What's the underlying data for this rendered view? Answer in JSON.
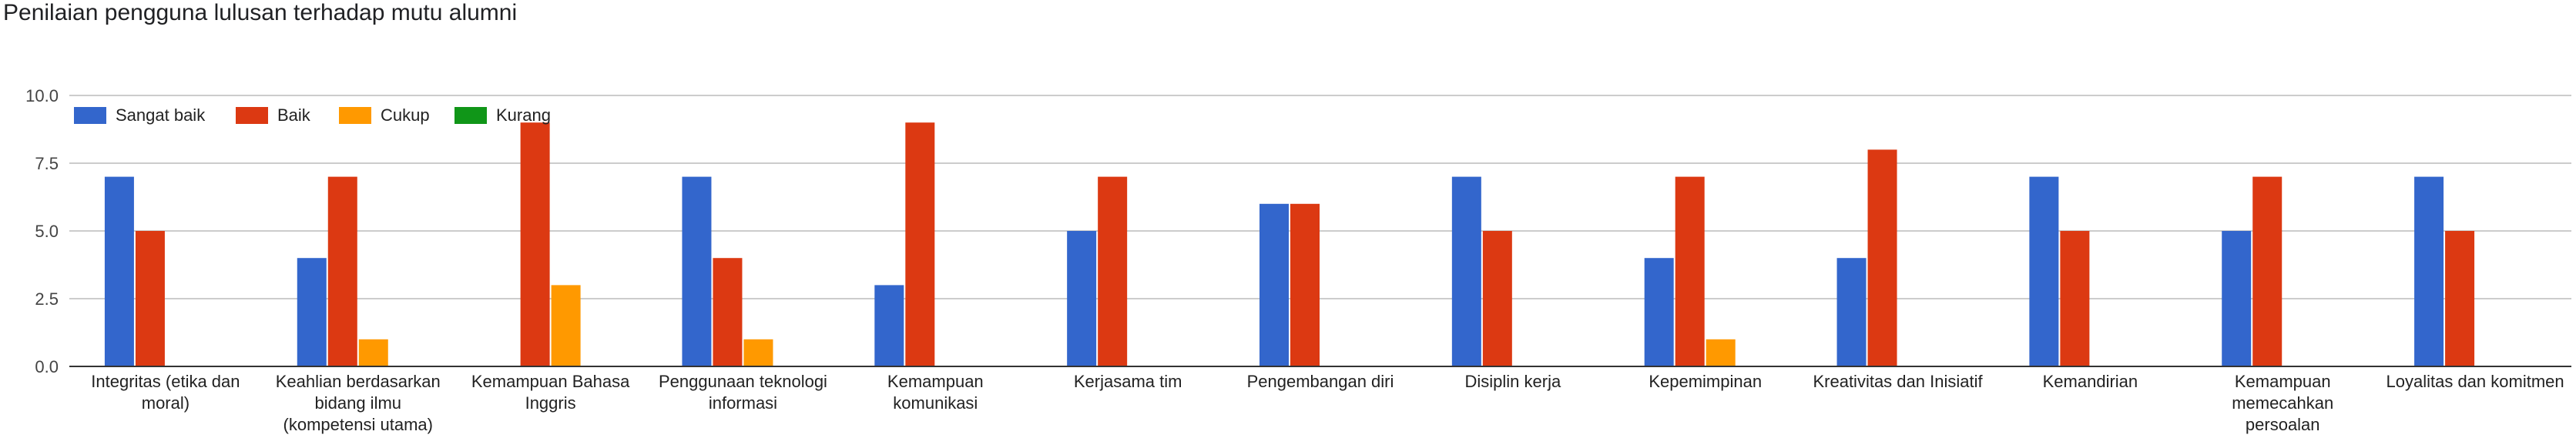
{
  "chart_data": {
    "type": "bar",
    "title": "Penilaian pengguna lulusan terhadap mutu alumni",
    "xlabel": "",
    "ylabel": "",
    "ylim": [
      0,
      10
    ],
    "yticks": [
      "0.0",
      "2.5",
      "5.0",
      "7.5",
      "10.0"
    ],
    "grid": true,
    "legend_position": "top-left",
    "categories": [
      "Integritas (etika dan moral)",
      "Keahlian berdasarkan bidang ilmu (kompetensi utama)",
      "Kemampuan Bahasa Inggris",
      "Penggunaan teknologi informasi",
      "Kemampuan komunikasi",
      "Kerjasama tim",
      "Pengembangan diri",
      "Disiplin kerja",
      "Kepemimpinan",
      "Kreativitas dan Inisiatif",
      "Kemandirian",
      "Kemampuan memecahkan persoalan",
      "Loyalitas dan komitmen"
    ],
    "category_lines": [
      [
        "Integritas (etika dan",
        "moral)"
      ],
      [
        "Keahlian berdasarkan",
        "bidang ilmu",
        "(kompetensi utama)"
      ],
      [
        "Kemampuan Bahasa",
        "Inggris"
      ],
      [
        "Penggunaan teknologi",
        "informasi"
      ],
      [
        "Kemampuan",
        "komunikasi"
      ],
      [
        "Kerjasama tim"
      ],
      [
        "Pengembangan diri"
      ],
      [
        "Disiplin kerja"
      ],
      [
        "Kepemimpinan"
      ],
      [
        "Kreativitas dan Inisiatif"
      ],
      [
        "Kemandirian"
      ],
      [
        "Kemampuan",
        "memecahkan",
        "persoalan"
      ],
      [
        "Loyalitas dan komitmen"
      ]
    ],
    "series": [
      {
        "name": "Sangat baik",
        "color": "#3366cc",
        "values": [
          7,
          4,
          0,
          7,
          3,
          5,
          6,
          7,
          4,
          4,
          7,
          5,
          7
        ]
      },
      {
        "name": "Baik",
        "color": "#dc3912",
        "values": [
          5,
          7,
          9,
          4,
          9,
          7,
          6,
          5,
          7,
          8,
          5,
          7,
          5
        ]
      },
      {
        "name": "Cukup",
        "color": "#ff9900",
        "values": [
          0,
          1,
          3,
          1,
          0,
          0,
          0,
          0,
          1,
          0,
          0,
          0,
          0
        ]
      },
      {
        "name": "Kurang",
        "color": "#109618",
        "values": [
          0,
          0,
          0,
          0,
          0,
          0,
          0,
          0,
          0,
          0,
          0,
          0,
          0
        ]
      }
    ]
  }
}
